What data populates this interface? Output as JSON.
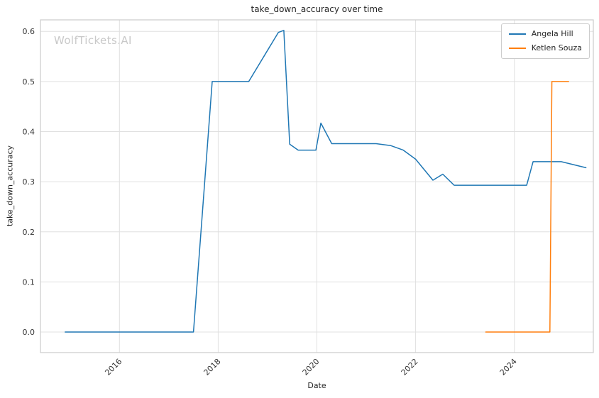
{
  "chart_data": {
    "type": "line",
    "title": "take_down_accuracy over time",
    "xlabel": "Date",
    "ylabel": "take_down_accuracy",
    "watermark": "WolfTickets.AI",
    "grid": true,
    "legend_position": "upper right",
    "xlim": [
      2014.4,
      2025.6
    ],
    "ylim": [
      -0.041,
      0.623
    ],
    "xticks": {
      "values": [
        2016,
        2018,
        2020,
        2022,
        2024
      ],
      "labels": [
        "2016",
        "2018",
        "2020",
        "2022",
        "2024"
      ]
    },
    "yticks": {
      "values": [
        0.0,
        0.1,
        0.2,
        0.3,
        0.4,
        0.5,
        0.6
      ],
      "labels": [
        "0.0",
        "0.1",
        "0.2",
        "0.3",
        "0.4",
        "0.5",
        "0.6"
      ]
    },
    "colors": {
      "grid": "#e0e0e0",
      "spine": "#cccccc",
      "tick_text": "#333333"
    },
    "series": [
      {
        "name": "Angela Hill",
        "color": "#1f77b4",
        "x": [
          2014.9,
          2017.5,
          2017.88,
          2018.62,
          2019.22,
          2019.33,
          2019.45,
          2019.62,
          2019.98,
          2020.08,
          2020.3,
          2021.2,
          2021.5,
          2021.75,
          2022.0,
          2022.35,
          2022.55,
          2022.78,
          2024.25,
          2024.38,
          2024.95,
          2025.45
        ],
        "y": [
          0.0,
          0.0,
          0.5,
          0.5,
          0.598,
          0.602,
          0.375,
          0.363,
          0.363,
          0.417,
          0.376,
          0.376,
          0.372,
          0.363,
          0.345,
          0.303,
          0.315,
          0.293,
          0.293,
          0.34,
          0.34,
          0.328
        ]
      },
      {
        "name": "Ketlen Souza",
        "color": "#ff7f0e",
        "x": [
          2023.42,
          2024.72,
          2024.76,
          2025.1
        ],
        "y": [
          0.0,
          0.0,
          0.5,
          0.5
        ]
      }
    ]
  }
}
